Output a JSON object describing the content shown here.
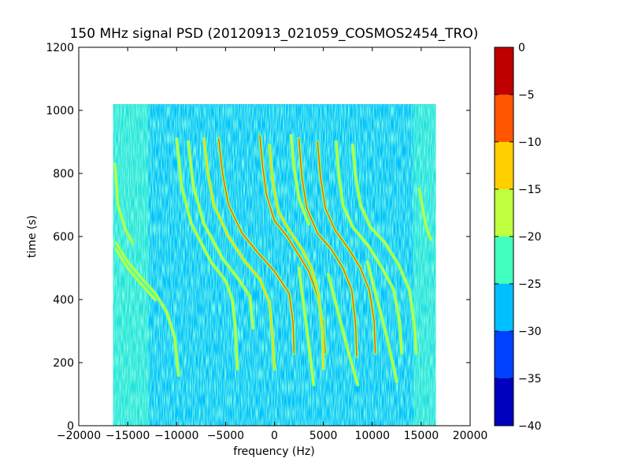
{
  "chart_data": {
    "type": "heatmap",
    "title": "150 MHz signal PSD (20120913_021059_COSMOS2454_TRO)",
    "xlabel": "frequency (Hz)",
    "ylabel": "time (s)",
    "xlim": [
      -20000,
      20000
    ],
    "ylim": [
      0,
      1200
    ],
    "xticks": [
      -20000,
      -15000,
      -10000,
      -5000,
      0,
      5000,
      10000,
      15000,
      20000
    ],
    "yticks": [
      0,
      200,
      400,
      600,
      800,
      1000,
      1200
    ],
    "data_extent": {
      "x": [
        -16500,
        16500
      ],
      "y": [
        0,
        1020
      ]
    },
    "colorbar": {
      "levels": [
        -40,
        -35,
        -30,
        -25,
        -20,
        -15,
        -10,
        -5,
        0
      ],
      "ticks": [
        0,
        -5,
        -10,
        -15,
        -20,
        -25,
        -30,
        -35,
        -40
      ],
      "colors": [
        "#0000bf",
        "#0040ff",
        "#00bfff",
        "#40ffbf",
        "#bfff40",
        "#ffcf00",
        "#ff5500",
        "#bf0000"
      ],
      "colormap": "jet"
    },
    "background_level": [
      -30,
      -25
    ],
    "traces": [
      {
        "name": "",
        "points": [
          [
            -16200,
            580
          ],
          [
            -15000,
            520
          ],
          [
            -13500,
            465
          ],
          [
            -12200,
            420
          ],
          [
            -11000,
            360
          ],
          [
            -10200,
            280
          ],
          [
            -9800,
            160
          ]
        ],
        "peak_level": -15
      },
      {
        "name": "",
        "points": [
          [
            -16200,
            560
          ],
          [
            -15000,
            500
          ],
          [
            -13500,
            445
          ],
          [
            -12200,
            400
          ]
        ],
        "peak_level": -20
      },
      {
        "name": "",
        "points": [
          [
            -16300,
            830
          ],
          [
            -16000,
            700
          ],
          [
            -15200,
            620
          ],
          [
            -14500,
            580
          ]
        ],
        "peak_level": -20
      },
      {
        "name": "",
        "points": [
          [
            -10000,
            910
          ],
          [
            -9500,
            760
          ],
          [
            -8500,
            640
          ],
          [
            -6500,
            520
          ],
          [
            -5000,
            460
          ],
          [
            -4300,
            400
          ],
          [
            -4000,
            310
          ],
          [
            -3800,
            180
          ]
        ],
        "peak_level": -15
      },
      {
        "name": "",
        "points": [
          [
            -8800,
            900
          ],
          [
            -8300,
            760
          ],
          [
            -7200,
            640
          ],
          [
            -5300,
            530
          ],
          [
            -3800,
            470
          ],
          [
            -2500,
            410
          ],
          [
            -2200,
            310
          ]
        ],
        "peak_level": -15
      },
      {
        "name": "",
        "points": [
          [
            -7200,
            910
          ],
          [
            -6800,
            800
          ],
          [
            -6200,
            700
          ],
          [
            -4700,
            600
          ],
          [
            -3000,
            520
          ],
          [
            -1500,
            465
          ],
          [
            -500,
            390
          ],
          [
            -200,
            280
          ],
          [
            0,
            180
          ]
        ],
        "peak_level": -10
      },
      {
        "name": "",
        "points": [
          [
            -5700,
            910
          ],
          [
            -5300,
            800
          ],
          [
            -4700,
            700
          ],
          [
            -3300,
            610
          ],
          [
            -1600,
            545
          ],
          [
            0,
            490
          ],
          [
            1500,
            420
          ],
          [
            1900,
            330
          ],
          [
            2000,
            230
          ]
        ],
        "peak_level": -5
      },
      {
        "name": "",
        "points": [
          [
            -1500,
            920
          ],
          [
            -1200,
            820
          ],
          [
            -800,
            730
          ],
          [
            0,
            650
          ],
          [
            1300,
            600
          ],
          [
            2500,
            540
          ],
          [
            3500,
            490
          ],
          [
            4200,
            430
          ],
          [
            5000,
            330
          ],
          [
            5200,
            230
          ]
        ],
        "peak_level": -5
      },
      {
        "name": "",
        "points": [
          [
            -500,
            890
          ],
          [
            -200,
            780
          ],
          [
            400,
            680
          ],
          [
            1500,
            620
          ],
          [
            2800,
            560
          ],
          [
            3800,
            500
          ],
          [
            4500,
            420
          ],
          [
            4900,
            300
          ],
          [
            5000,
            180
          ]
        ],
        "peak_level": -10
      },
      {
        "name": "",
        "points": [
          [
            2500,
            910
          ],
          [
            2800,
            790
          ],
          [
            3300,
            690
          ],
          [
            4400,
            610
          ],
          [
            5800,
            560
          ],
          [
            7000,
            500
          ],
          [
            7900,
            430
          ],
          [
            8300,
            320
          ],
          [
            8400,
            220
          ]
        ],
        "peak_level": -5
      },
      {
        "name": "",
        "points": [
          [
            1700,
            920
          ],
          [
            2000,
            820
          ],
          [
            2500,
            720
          ],
          [
            3500,
            640
          ]
        ],
        "peak_level": -15
      },
      {
        "name": "",
        "points": [
          [
            4400,
            900
          ],
          [
            4700,
            790
          ],
          [
            5200,
            690
          ],
          [
            6200,
            620
          ],
          [
            7600,
            560
          ],
          [
            8800,
            500
          ],
          [
            9700,
            430
          ],
          [
            10200,
            330
          ],
          [
            10300,
            230
          ]
        ],
        "peak_level": -5
      },
      {
        "name": "",
        "points": [
          [
            6300,
            900
          ],
          [
            6600,
            790
          ],
          [
            7000,
            700
          ],
          [
            8000,
            630
          ],
          [
            9600,
            570
          ],
          [
            11000,
            500
          ],
          [
            12200,
            430
          ],
          [
            12800,
            330
          ],
          [
            13000,
            230
          ]
        ],
        "peak_level": -15
      },
      {
        "name": "",
        "points": [
          [
            8000,
            890
          ],
          [
            8300,
            790
          ],
          [
            8800,
            700
          ],
          [
            9800,
            630
          ],
          [
            11300,
            580
          ],
          [
            12700,
            510
          ],
          [
            13800,
            430
          ],
          [
            14300,
            320
          ],
          [
            14500,
            230
          ]
        ],
        "peak_level": -15
      },
      {
        "name": "",
        "points": [
          [
            14800,
            750
          ],
          [
            15200,
            680
          ],
          [
            15600,
            620
          ],
          [
            16000,
            590
          ]
        ],
        "peak_level": -15
      },
      {
        "name": "",
        "points": [
          [
            2500,
            500
          ],
          [
            3000,
            380
          ],
          [
            3500,
            260
          ],
          [
            4000,
            130
          ]
        ],
        "peak_level": -20
      },
      {
        "name": "",
        "points": [
          [
            5500,
            480
          ],
          [
            6500,
            360
          ],
          [
            7500,
            240
          ],
          [
            8500,
            130
          ]
        ],
        "peak_level": -20
      },
      {
        "name": "",
        "points": [
          [
            9500,
            520
          ],
          [
            10500,
            400
          ],
          [
            11500,
            280
          ],
          [
            12500,
            140
          ]
        ],
        "peak_level": -20
      }
    ]
  }
}
